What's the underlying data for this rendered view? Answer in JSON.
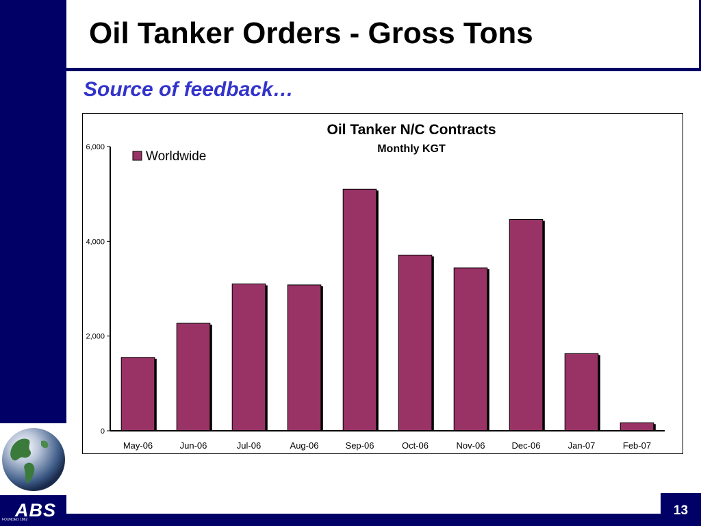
{
  "slide": {
    "title": "Oil Tanker Orders - Gross Tons",
    "subtitle": "Source of feedback…",
    "page_number": "13"
  },
  "logo": {
    "text": "ABS",
    "tagline": "FOUNDED 1862"
  },
  "colors": {
    "navy": "#000066",
    "subtitle": "#3333cc",
    "bar": "#993366"
  },
  "chart_data": {
    "type": "bar",
    "title": "Oil Tanker N/C Contracts",
    "subtitle": "Monthly KGT",
    "categories": [
      "May-06",
      "Jun-06",
      "Jul-06",
      "Aug-06",
      "Sep-06",
      "Oct-06",
      "Nov-06",
      "Dec-06",
      "Jan-07",
      "Feb-07"
    ],
    "series": [
      {
        "name": "Worldwide",
        "color": "#993366",
        "values": [
          1550,
          2270,
          3100,
          3080,
          5100,
          3710,
          3440,
          4460,
          1630,
          170
        ]
      }
    ],
    "ylim": [
      0,
      6000
    ],
    "yticks": [
      0,
      2000,
      4000,
      6000
    ],
    "ytick_labels": [
      "0",
      "2,000",
      "4,000",
      "6,000"
    ],
    "legend": "top-left",
    "grid": false
  }
}
